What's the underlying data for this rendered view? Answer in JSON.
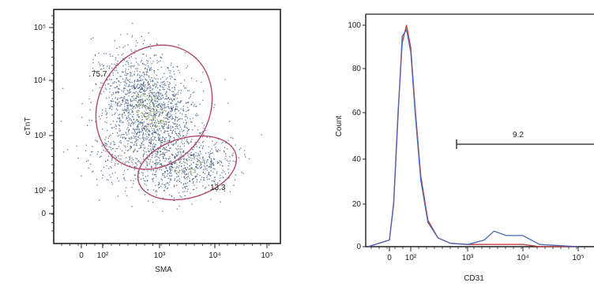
{
  "chart_data": [
    {
      "type": "scatter",
      "xlabel": "SMA",
      "ylabel": "cTnT",
      "x_ticks": [
        "0",
        "10²",
        "10³",
        "10⁴",
        "10⁵"
      ],
      "y_ticks": [
        "0",
        "10²",
        "10³",
        "10⁴",
        "10⁵"
      ],
      "x_scale": "biexponential",
      "y_scale": "biexponential",
      "gates": [
        {
          "name": "upper",
          "percent": "75.7",
          "shape": "ellipse",
          "color": "#b0486e"
        },
        {
          "name": "lower",
          "percent": "13.3",
          "shape": "ellipse",
          "color": "#b0486e"
        }
      ],
      "point_color": "#2d4f7a",
      "density_color": "#8a9a3c"
    },
    {
      "type": "line",
      "xlabel": "CD31",
      "ylabel": "Count",
      "x_ticks": [
        "0",
        "10²",
        "10³",
        "10⁴",
        "10⁵"
      ],
      "y_ticks": [
        "0",
        "20",
        "40",
        "60",
        "80",
        "100"
      ],
      "ylim": [
        0,
        100
      ],
      "x_scale": "biexponential",
      "gate": {
        "label": "9.2"
      },
      "series": [
        {
          "color": "#c23b3b",
          "x": [
            -50,
            0,
            20,
            40,
            60,
            80,
            100,
            120,
            150,
            200,
            300,
            500,
            1000,
            2000,
            3000,
            5000,
            10000,
            20000,
            100000
          ],
          "y": [
            0,
            3,
            20,
            60,
            92,
            100,
            90,
            62,
            32,
            12,
            4,
            1.5,
            1,
            1,
            1,
            1,
            1,
            0,
            0
          ]
        },
        {
          "color": "#4a66b5",
          "x": [
            -50,
            0,
            20,
            40,
            60,
            80,
            100,
            120,
            150,
            200,
            300,
            500,
            1000,
            2000,
            3000,
            5000,
            10000,
            20000,
            100000
          ],
          "y": [
            0,
            3,
            19,
            58,
            95,
            98,
            88,
            60,
            30,
            11,
            4,
            1.5,
            1,
            3,
            7,
            5,
            5,
            1,
            0
          ]
        }
      ]
    }
  ]
}
